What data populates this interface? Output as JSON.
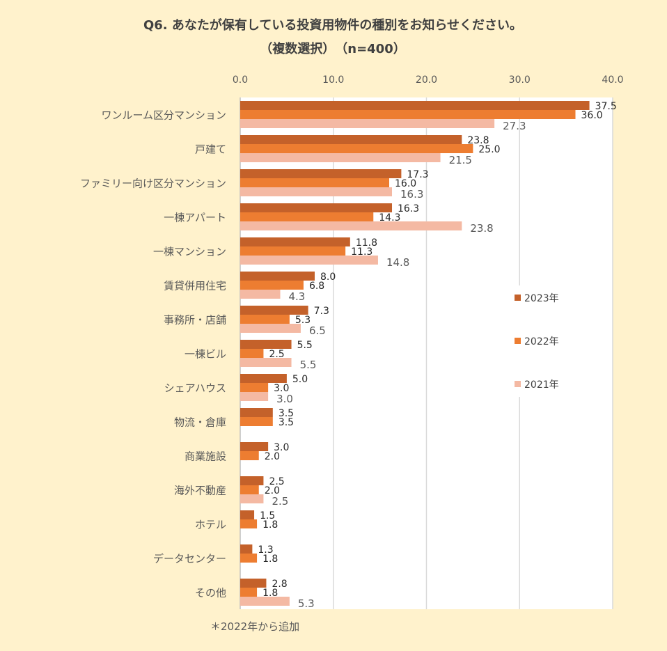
{
  "chart_data": {
    "type": "bar",
    "orientation": "horizontal",
    "title": "Q6. あなたが保有している投資用物件の種別をお知らせください。",
    "subtitle": "（複数選択）　（n=400）",
    "xlabel": "",
    "ylabel": "",
    "xlim": [
      0,
      40
    ],
    "xticks": [
      "0.0",
      "10.0",
      "20.0",
      "30.0",
      "40.0"
    ],
    "grid": true,
    "legend_position": "right",
    "categories": [
      "ワンルーム区分マンション",
      "戸建て",
      "ファミリー向け区分マンション",
      "一棟アパート",
      "一棟マンション",
      "賃貸併用住宅",
      "事務所・店舗",
      "一棟ビル",
      "シェアハウス",
      "物流・倉庫",
      "商業施設",
      "海外不動産",
      "ホテル",
      "データセンター",
      "その他"
    ],
    "series": [
      {
        "name": "2023年",
        "color": "#C4612A",
        "values": [
          37.5,
          23.8,
          17.3,
          16.3,
          11.8,
          8.0,
          7.3,
          5.5,
          5.0,
          3.5,
          3.0,
          2.5,
          1.5,
          1.3,
          2.8
        ]
      },
      {
        "name": "2022年",
        "color": "#ED7D31",
        "values": [
          36.0,
          25.0,
          16.0,
          14.3,
          11.3,
          6.8,
          5.3,
          2.5,
          3.0,
          3.5,
          2.0,
          2.0,
          1.8,
          1.8,
          1.8
        ]
      },
      {
        "name": "2021年",
        "color": "#F4B9A3",
        "values": [
          27.3,
          21.5,
          16.3,
          23.8,
          14.8,
          4.3,
          6.5,
          5.5,
          3.0,
          null,
          null,
          2.5,
          null,
          null,
          5.3
        ]
      }
    ],
    "note": "＊2022年から追加"
  }
}
